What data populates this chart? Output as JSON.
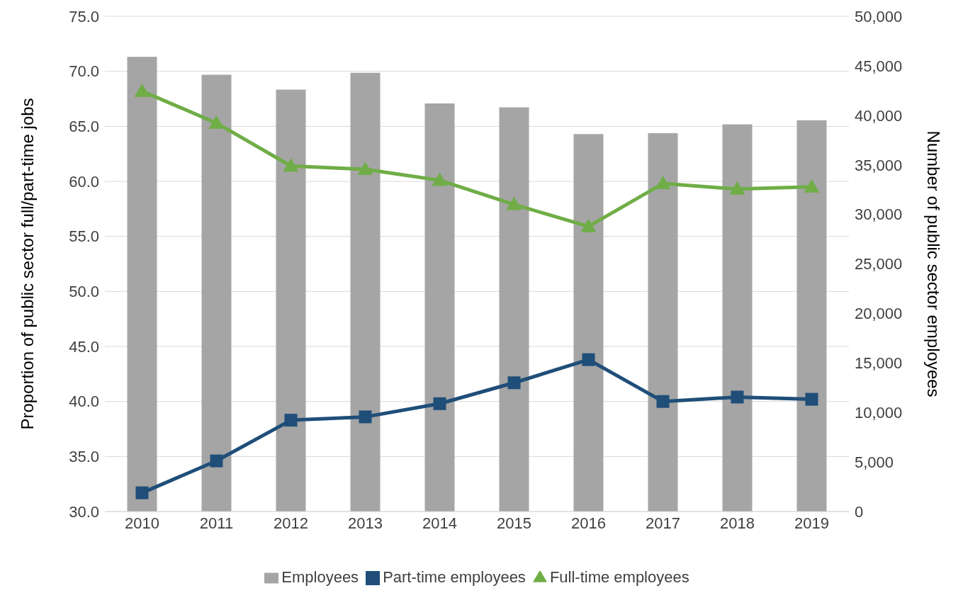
{
  "chart_data": {
    "type": "bar",
    "categories": [
      "2010",
      "2011",
      "2012",
      "2013",
      "2014",
      "2015",
      "2016",
      "2017",
      "2018",
      "2019"
    ],
    "ylabel": "Proportion of public sector full/part-time jobs",
    "y2label": "Number of public sector employees",
    "ylim": [
      30,
      75
    ],
    "yticks": [
      {
        "value": 30,
        "label": "30.0"
      },
      {
        "value": 35,
        "label": "35.0"
      },
      {
        "value": 40,
        "label": "40.0"
      },
      {
        "value": 45,
        "label": "45.0"
      },
      {
        "value": 50,
        "label": "50.0"
      },
      {
        "value": 55,
        "label": "55.0"
      },
      {
        "value": 60,
        "label": "60.0"
      },
      {
        "value": 65,
        "label": "65.0"
      },
      {
        "value": 70,
        "label": "70.0"
      },
      {
        "value": 75,
        "label": "75.0"
      }
    ],
    "y2lim": [
      0,
      50000
    ],
    "y2ticks": [
      0,
      {
        "value": 5000,
        "label": "5,000"
      },
      {
        "value": 10000,
        "label": "10,000"
      },
      {
        "value": 15000,
        "label": "15,000"
      },
      {
        "value": 20000,
        "label": "20,000"
      },
      {
        "value": 25000,
        "label": "25,000"
      },
      {
        "value": 30000,
        "label": "30,000"
      },
      {
        "value": 35000,
        "label": "35,000"
      },
      {
        "value": 40000,
        "label": "40,000"
      },
      {
        "value": 45000,
        "label": "45,000"
      },
      {
        "value": 50000,
        "label": "50,000"
      }
    ],
    "grid": "y",
    "legend": "bottom",
    "series": [
      {
        "name": "Employees",
        "axis": "y2",
        "color": "#a5a5a5",
        "values": [
          45900,
          44100,
          42600,
          44300,
          41200,
          40800,
          38100,
          38200,
          39100,
          39500
        ]
      },
      {
        "name": "Part-time employees",
        "type": "line",
        "axis": "y",
        "marker": "square",
        "color": "#1f4e79",
        "values": [
          31.7,
          34.6,
          38.3,
          38.6,
          39.8,
          41.7,
          43.8,
          40.0,
          40.4,
          40.2
        ]
      },
      {
        "name": "Full-time employees",
        "type": "line",
        "axis": "y",
        "marker": "triangle",
        "color": "#70ad47",
        "values": [
          68.2,
          65.3,
          61.4,
          61.1,
          60.1,
          57.9,
          55.9,
          59.8,
          59.3,
          59.5
        ]
      }
    ]
  }
}
